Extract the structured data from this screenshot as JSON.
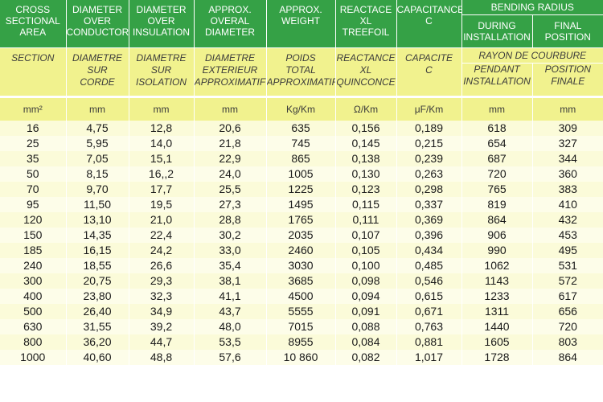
{
  "header_en": {
    "section": "CROSS\nSECTIONAL\nAREA",
    "diam_conductor": "DIAMETER\nOVER\nCONDUCTOR",
    "diam_insulation": "DIAMETER\nOVER\nINSULATION",
    "overall_diameter": "APPROX.\nOVERAL\nDIAMETER",
    "weight": "APPROX.\nWEIGHT",
    "reactance": "REACTACE\nXL\nTREEFOIL",
    "capacitance": "CAPACITANCE\nC",
    "bending_radius": "BENDING RADIUS",
    "during_installation": "DURING\nINSTALLATION",
    "final_position": "FINAL\nPOSITION"
  },
  "header_fr": {
    "section": "SECTION",
    "diam_conductor": "DIAMETRE\nSUR\nCORDE",
    "diam_insulation": "DIAMETRE\nSUR\nISOLATION",
    "overall_diameter": "DIAMETRE\nEXTERIEUR\nAPPROXIMATIF",
    "weight": "POIDS\nTOTAL\nAPPROXIMATIF",
    "reactance": "REACTANCE\nXL\nQUINCONCE",
    "capacitance": "CAPACITE\nC",
    "bending_radius": "RAYON DE COURBURE",
    "during_installation": "PENDANT\nINSTALLATION",
    "final_position": "POSITION\nFINALE"
  },
  "units": [
    "mm²",
    "mm",
    "mm",
    "mm",
    "Kg/Km",
    "Ω/Km",
    "μF/Km",
    "mm",
    "mm"
  ],
  "rows": [
    [
      "16",
      "4,75",
      "12,8",
      "20,6",
      "635",
      "0,156",
      "0,189",
      "618",
      "309"
    ],
    [
      "25",
      "5,95",
      "14,0",
      "21,8",
      "745",
      "0,145",
      "0,215",
      "654",
      "327"
    ],
    [
      "35",
      "7,05",
      "15,1",
      "22,9",
      "865",
      "0,138",
      "0,239",
      "687",
      "344"
    ],
    [
      "50",
      "8,15",
      "16,,2",
      "24,0",
      "1005",
      "0,130",
      "0,263",
      "720",
      "360"
    ],
    [
      "70",
      "9,70",
      "17,7",
      "25,5",
      "1225",
      "0,123",
      "0,298",
      "765",
      "383"
    ],
    [
      "95",
      "11,50",
      "19,5",
      "27,3",
      "1495",
      "0,115",
      "0,337",
      "819",
      "410"
    ],
    [
      "120",
      "13,10",
      "21,0",
      "28,8",
      "1765",
      "0,111",
      "0,369",
      "864",
      "432"
    ],
    [
      "150",
      "14,35",
      "22,4",
      "30,2",
      "2035",
      "0,107",
      "0,396",
      "906",
      "453"
    ],
    [
      "185",
      "16,15",
      "24,2",
      "33,0",
      "2460",
      "0,105",
      "0,434",
      "990",
      "495"
    ],
    [
      "240",
      "18,55",
      "26,6",
      "35,4",
      "3030",
      "0,100",
      "0,485",
      "1062",
      "531"
    ],
    [
      "300",
      "20,75",
      "29,3",
      "38,1",
      "3685",
      "0,098",
      "0,546",
      "1143",
      "572"
    ],
    [
      "400",
      "23,80",
      "32,3",
      "41,1",
      "4500",
      "0,094",
      "0,615",
      "1233",
      "617"
    ],
    [
      "500",
      "26,40",
      "34,9",
      "43,7",
      "5555",
      "0,091",
      "0,671",
      "1311",
      "656"
    ],
    [
      "630",
      "31,55",
      "39,2",
      "48,0",
      "7015",
      "0,088",
      "0,763",
      "1440",
      "720"
    ],
    [
      "800",
      "36,20",
      "44,7",
      "53,5",
      "8955",
      "0,084",
      "0,881",
      "1605",
      "803"
    ],
    [
      "1000",
      "40,60",
      "48,8",
      "57,6",
      "10 860",
      "0,082",
      "1,017",
      "1728",
      "864"
    ]
  ],
  "colors": {
    "header_green": "#35a146",
    "subheader_yellow": "#f1f28e",
    "row_light": "#fdfde9"
  }
}
